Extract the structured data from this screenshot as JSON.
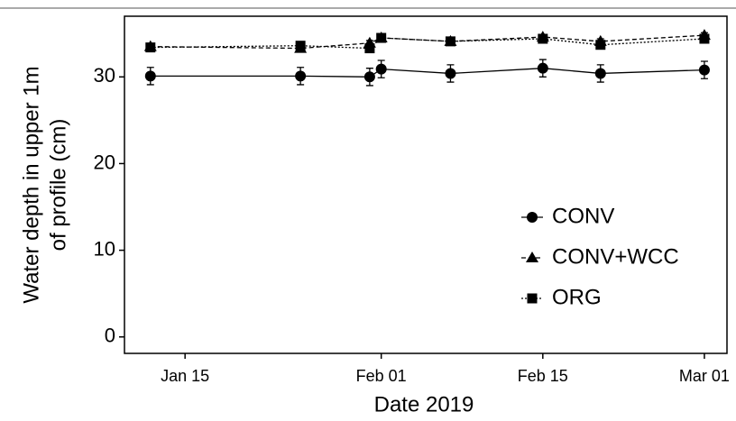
{
  "chart_data": {
    "type": "line",
    "x_label": "Date 2019",
    "y_label": [
      "Water depth in upper 1m",
      "of profile (cm)"
    ],
    "x": [
      "2019-01-12",
      "2019-01-25",
      "2019-01-31",
      "2019-02-01",
      "2019-02-07",
      "2019-02-15",
      "2019-02-20",
      "2019-03-01"
    ],
    "series": [
      {
        "name": "CONV",
        "color": "#000000",
        "marker": "circle",
        "linestyle": "solid",
        "values": [
          30.1,
          30.1,
          30.0,
          30.9,
          30.4,
          31.0,
          30.4,
          30.8
        ],
        "errors": [
          1.0,
          1.0,
          1.0,
          1.0,
          1.0,
          1.0,
          1.0,
          1.0
        ]
      },
      {
        "name": "CONV+WCC",
        "color": "#000000",
        "marker": "triangle",
        "linestyle": "dashed",
        "values": [
          33.5,
          33.3,
          33.9,
          34.5,
          34.1,
          34.6,
          34.1,
          34.8
        ],
        "errors": [
          0.3,
          0.3,
          0.3,
          0.3,
          0.3,
          0.3,
          0.3,
          0.3
        ]
      },
      {
        "name": "ORG",
        "color": "#000000",
        "marker": "square",
        "linestyle": "dotted",
        "values": [
          33.4,
          33.6,
          33.3,
          34.5,
          34.1,
          34.4,
          33.7,
          34.4
        ],
        "errors": [
          0.3,
          0.3,
          0.3,
          0.3,
          0.3,
          0.3,
          0.3,
          0.3
        ]
      }
    ],
    "xlim": [
      "2019-01-09T18:00",
      "2019-03-02T23:00"
    ],
    "xticks": [
      {
        "value": "2019-01-15",
        "label": "Jan 15"
      },
      {
        "value": "2019-02-01",
        "label": "Feb 01"
      },
      {
        "value": "2019-02-15",
        "label": "Feb 15"
      },
      {
        "value": "2019-03-01",
        "label": "Mar 01"
      }
    ],
    "ylim": [
      -1.9,
      37
    ],
    "yticks": [
      0,
      10,
      20,
      30
    ],
    "legend": "lower right"
  }
}
